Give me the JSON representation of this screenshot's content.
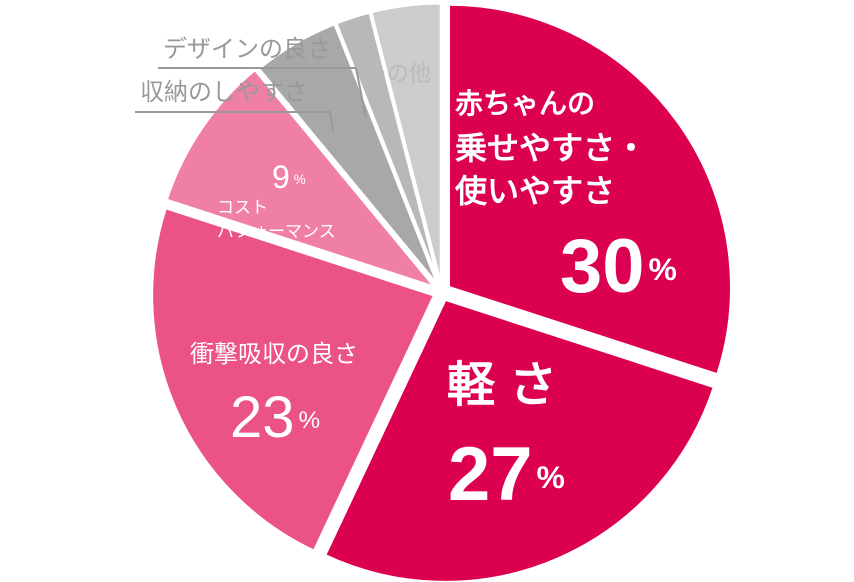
{
  "chart_data": {
    "type": "pie",
    "categories": [
      [
        "赤ちゃんの",
        "乗せやすさ・",
        "使いやすさ"
      ],
      [
        "軽さ"
      ],
      [
        "衝撃吸収の良さ"
      ],
      [
        "コスト",
        "パフォーマンス"
      ],
      [
        "収納のしやすさ"
      ],
      [
        "デザインの良さ"
      ],
      [
        "その他"
      ]
    ],
    "values": [
      30,
      27,
      23,
      9,
      5,
      2,
      4
    ],
    "value_labels": [
      "30%",
      "27%",
      "23%",
      "9%",
      null,
      null,
      null
    ],
    "colors": [
      "#dc0050",
      "#dc0050",
      "#ea5288",
      "#f07fa6",
      "#a8a8a8",
      "#b8b8b8",
      "#cccccc"
    ]
  }
}
